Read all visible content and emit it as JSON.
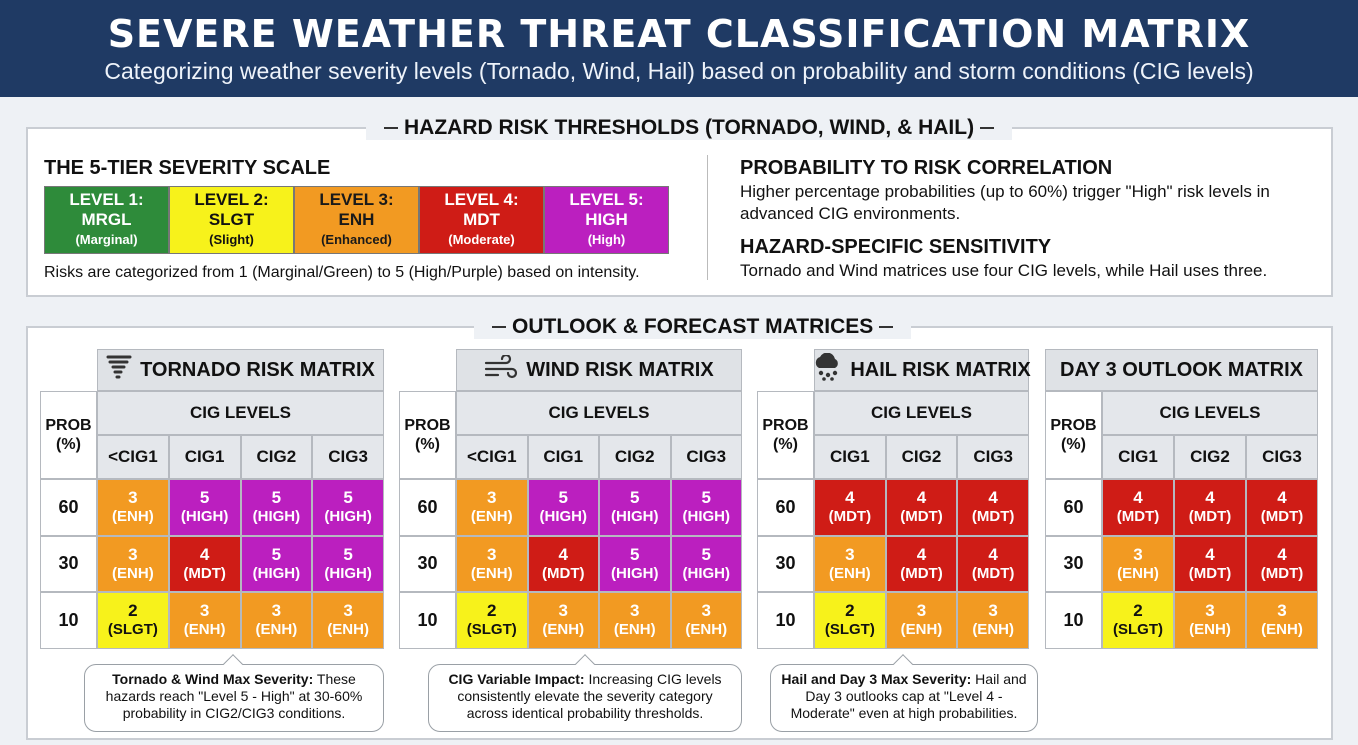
{
  "header": {
    "title": "SEVERE WEATHER THREAT CLASSIFICATION MATRIX",
    "subtitle": "Categorizing weather severity levels (Tornado, Wind, Hail) based on probability and storm conditions (CIG levels)"
  },
  "thresholds": {
    "title": "HAZARD RISK THRESHOLDS (TORNADO, WIND, & HAIL)",
    "scale_heading": "THE 5-TIER SEVERITY SCALE",
    "levels": [
      {
        "line1": "LEVEL 1:",
        "line2": "MRGL",
        "line3": "(Marginal)",
        "color": "#2e8b3a",
        "text": "#ffffff"
      },
      {
        "line1": "LEVEL 2:",
        "line2": "SLGT",
        "line3": "(Slight)",
        "color": "#f7f21b",
        "text": "#111111"
      },
      {
        "line1": "LEVEL 3:",
        "line2": "ENH",
        "line3": "(Enhanced)",
        "color": "#f29a22",
        "text": "#1a1a1a"
      },
      {
        "line1": "LEVEL 4:",
        "line2": "MDT",
        "line3": "(Moderate)",
        "color": "#cf1c16",
        "text": "#ffffff"
      },
      {
        "line1": "LEVEL 5:",
        "line2": "HIGH",
        "line3": "(High)",
        "color": "#bb1fbf",
        "text": "#ffffff"
      }
    ],
    "scale_note": "Risks are categorized from 1 (Marginal/Green) to 5 (High/Purple) based on intensity.",
    "corr_heading": "PROBABILITY TO RISK CORRELATION",
    "corr_text": "Higher percentage probabilities (up to 60%) trigger \"High\" risk levels in advanced CIG environments.",
    "sens_heading": "HAZARD-SPECIFIC SENSITIVITY",
    "sens_text": "Tornado and Wind matrices use four CIG levels, while Hail uses three."
  },
  "outlook": {
    "title": "OUTLOOK & FORECAST MATRICES",
    "cig_header": "CIG LEVELS",
    "prob_header": [
      "PROB",
      "(%)"
    ],
    "matrices": [
      {
        "title": "TORNADO RISK MATRIX",
        "icon": "tornado-icon",
        "columns": [
          "<CIG1",
          "CIG1",
          "CIG2",
          "CIG3"
        ],
        "rows": [
          {
            "prob": "60",
            "cells": [
              {
                "n": "3",
                "l": "(ENH)"
              },
              {
                "n": "5",
                "l": "(HIGH)"
              },
              {
                "n": "5",
                "l": "(HIGH)"
              },
              {
                "n": "5",
                "l": "(HIGH)"
              }
            ]
          },
          {
            "prob": "30",
            "cells": [
              {
                "n": "3",
                "l": "(ENH)"
              },
              {
                "n": "4",
                "l": "(MDT)"
              },
              {
                "n": "5",
                "l": "(HIGH)"
              },
              {
                "n": "5",
                "l": "(HIGH)"
              }
            ]
          },
          {
            "prob": "10",
            "cells": [
              {
                "n": "2",
                "l": "(SLGT)"
              },
              {
                "n": "3",
                "l": "(ENH)"
              },
              {
                "n": "3",
                "l": "(ENH)"
              },
              {
                "n": "3",
                "l": "(ENH)"
              }
            ]
          }
        ]
      },
      {
        "title": "WIND RISK MATRIX",
        "icon": "wind-icon",
        "columns": [
          "<CIG1",
          "CIG1",
          "CIG2",
          "CIG3"
        ],
        "rows": [
          {
            "prob": "60",
            "cells": [
              {
                "n": "3",
                "l": "(ENH)"
              },
              {
                "n": "5",
                "l": "(HIGH)"
              },
              {
                "n": "5",
                "l": "(HIGH)"
              },
              {
                "n": "5",
                "l": "(HIGH)"
              }
            ]
          },
          {
            "prob": "30",
            "cells": [
              {
                "n": "3",
                "l": "(ENH)"
              },
              {
                "n": "4",
                "l": "(MDT)"
              },
              {
                "n": "5",
                "l": "(HIGH)"
              },
              {
                "n": "5",
                "l": "(HIGH)"
              }
            ]
          },
          {
            "prob": "10",
            "cells": [
              {
                "n": "2",
                "l": "(SLGT)"
              },
              {
                "n": "3",
                "l": "(ENH)"
              },
              {
                "n": "3",
                "l": "(ENH)"
              },
              {
                "n": "3",
                "l": "(ENH)"
              }
            ]
          }
        ]
      },
      {
        "title": "HAIL RISK MATRIX",
        "icon": "hail-icon",
        "columns": [
          "CIG1",
          "CIG2",
          "CIG3"
        ],
        "rows": [
          {
            "prob": "60",
            "cells": [
              {
                "n": "4",
                "l": "(MDT)"
              },
              {
                "n": "4",
                "l": "(MDT)"
              },
              {
                "n": "4",
                "l": "(MDT)"
              }
            ]
          },
          {
            "prob": "30",
            "cells": [
              {
                "n": "3",
                "l": "(ENH)"
              },
              {
                "n": "4",
                "l": "(MDT)"
              },
              {
                "n": "4",
                "l": "(MDT)"
              }
            ]
          },
          {
            "prob": "10",
            "cells": [
              {
                "n": "2",
                "l": "(SLGT)"
              },
              {
                "n": "3",
                "l": "(ENH)"
              },
              {
                "n": "3",
                "l": "(ENH)"
              }
            ]
          }
        ]
      },
      {
        "title": "DAY 3 OUTLOOK MATRIX",
        "icon": "",
        "columns": [
          "CIG1",
          "CIG2",
          "CIG3"
        ],
        "rows": [
          {
            "prob": "60",
            "cells": [
              {
                "n": "4",
                "l": "(MDT)"
              },
              {
                "n": "4",
                "l": "(MDT)"
              },
              {
                "n": "4",
                "l": "(MDT)"
              }
            ]
          },
          {
            "prob": "30",
            "cells": [
              {
                "n": "3",
                "l": "(ENH)"
              },
              {
                "n": "4",
                "l": "(MDT)"
              },
              {
                "n": "4",
                "l": "(MDT)"
              }
            ]
          },
          {
            "prob": "10",
            "cells": [
              {
                "n": "2",
                "l": "(SLGT)"
              },
              {
                "n": "3",
                "l": "(ENH)"
              },
              {
                "n": "3",
                "l": "(ENH)"
              }
            ]
          }
        ]
      }
    ],
    "callouts": [
      {
        "bold": "Tornado & Wind Max Severity:",
        "text": " These hazards reach \"Level 5 - High\" at 30-60% probability in CIG2/CIG3 conditions."
      },
      {
        "bold": "CIG Variable Impact:",
        "text": " Increasing CIG levels consistently elevate the severity category across identical probability thresholds."
      },
      {
        "bold": "Hail and Day 3 Max Severity:",
        "text": " Hail and Day 3 outlooks cap at \"Level 4 - Moderate\" even at high probabilities."
      }
    ]
  },
  "colors": {
    "2": "#f7f21b",
    "3": "#f29a22",
    "4": "#cf1c16",
    "5": "#bb1fbf"
  }
}
